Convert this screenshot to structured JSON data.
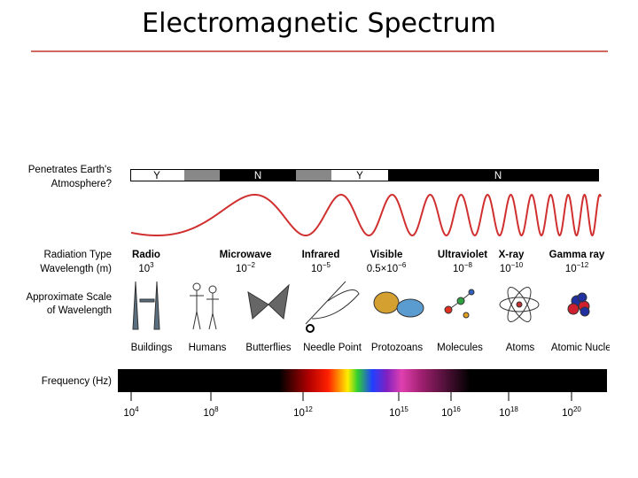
{
  "header": {
    "title": "Electromagnetic Spectrum"
  },
  "atmosphere": {
    "label": [
      "Penetrates Earth's",
      "Atmosphere?"
    ],
    "segments": [
      "Y",
      "N",
      "Y",
      "N"
    ]
  },
  "radiation": {
    "type_label": "Radiation Type",
    "wavelength_label": "Wavelength (m)",
    "columns": [
      {
        "name": "Radio",
        "wavelength": {
          "base": "10",
          "exp": "3"
        }
      },
      {
        "name": "Microwave",
        "wavelength": {
          "base": "10",
          "exp": "−2"
        }
      },
      {
        "name": "Infrared",
        "wavelength": {
          "base": "10",
          "exp": "−5"
        }
      },
      {
        "name": "Visible",
        "wavelength": {
          "base": "0.5×10",
          "exp": "−6"
        }
      },
      {
        "name": "Ultraviolet",
        "wavelength": {
          "base": "10",
          "exp": "−8"
        }
      },
      {
        "name": "X-ray",
        "wavelength": {
          "base": "10",
          "exp": "−10"
        }
      },
      {
        "name": "Gamma ray",
        "wavelength": {
          "base": "10",
          "exp": "−12"
        }
      }
    ]
  },
  "scale": {
    "label": [
      "Approximate Scale",
      "of Wavelength"
    ],
    "items": [
      "Buildings",
      "Humans",
      "Butterflies",
      "Needle Point",
      "Protozoans",
      "Molecules",
      "Atoms",
      "Atomic Nuclei"
    ]
  },
  "frequency": {
    "label": "Frequency (Hz)",
    "ticks": [
      {
        "base": "10",
        "exp": "4"
      },
      {
        "base": "10",
        "exp": "8"
      },
      {
        "base": "10",
        "exp": "12"
      },
      {
        "base": "10",
        "exp": "15"
      },
      {
        "base": "10",
        "exp": "16"
      },
      {
        "base": "10",
        "exp": "18"
      },
      {
        "base": "10",
        "exp": "20"
      }
    ]
  }
}
